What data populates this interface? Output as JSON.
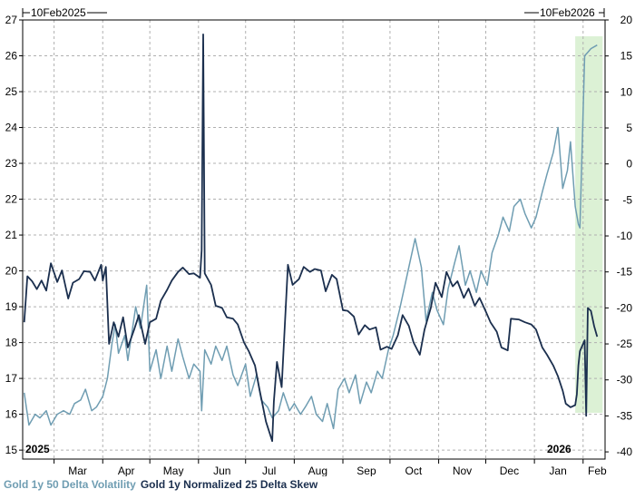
{
  "chart_data": {
    "type": "line",
    "start_label": "10Feb2025",
    "end_label": "10Feb2026",
    "year_labels": [
      "2025",
      "2026"
    ],
    "x_ticks": [
      "Mar",
      "Apr",
      "May",
      "Jun",
      "Jul",
      "Aug",
      "Sep",
      "Oct",
      "Nov",
      "Dec",
      "Jan",
      "Feb"
    ],
    "y_left": {
      "ticks": [
        15,
        16,
        17,
        18,
        19,
        20,
        21,
        22,
        23,
        24,
        25,
        26,
        27
      ],
      "range": [
        14.75,
        27
      ]
    },
    "y_right": {
      "ticks": [
        -40,
        -35,
        -30,
        -25,
        -20,
        -15,
        -10,
        -5,
        0,
        5,
        10,
        15,
        20
      ],
      "range": [
        -41,
        20
      ]
    },
    "highlight": {
      "from": "2026-01-27",
      "to": "2026-02-10",
      "color": "#d8f0d0"
    },
    "series": [
      {
        "name": "Gold 1y 50 Delta Volatility",
        "axis": "left",
        "color": "#6f9db2",
        "points": [
          [
            "2025-02-10",
            16.6
          ],
          [
            "2025-02-13",
            15.7
          ],
          [
            "2025-02-17",
            16.0
          ],
          [
            "2025-02-20",
            15.9
          ],
          [
            "2025-02-24",
            16.1
          ],
          [
            "2025-02-27",
            15.7
          ],
          [
            "2025-03-03",
            16.0
          ],
          [
            "2025-03-07",
            16.1
          ],
          [
            "2025-03-11",
            16.0
          ],
          [
            "2025-03-14",
            16.3
          ],
          [
            "2025-03-18",
            16.4
          ],
          [
            "2025-03-21",
            16.7
          ],
          [
            "2025-03-25",
            16.1
          ],
          [
            "2025-03-28",
            16.2
          ],
          [
            "2025-04-01",
            16.5
          ],
          [
            "2025-04-04",
            17.0
          ],
          [
            "2025-04-07",
            18.0
          ],
          [
            "2025-04-09",
            18.5
          ],
          [
            "2025-04-11",
            17.7
          ],
          [
            "2025-04-15",
            18.2
          ],
          [
            "2025-04-17",
            17.5
          ],
          [
            "2025-04-22",
            19.0
          ],
          [
            "2025-04-25",
            18.4
          ],
          [
            "2025-04-29",
            19.6
          ],
          [
            "2025-05-01",
            17.2
          ],
          [
            "2025-05-05",
            17.8
          ],
          [
            "2025-05-08",
            17.0
          ],
          [
            "2025-05-12",
            17.9
          ],
          [
            "2025-05-15",
            17.2
          ],
          [
            "2025-05-19",
            18.1
          ],
          [
            "2025-05-22",
            17.6
          ],
          [
            "2025-05-26",
            17.0
          ],
          [
            "2025-05-29",
            17.4
          ],
          [
            "2025-06-02",
            17.2
          ],
          [
            "2025-06-03",
            16.1
          ],
          [
            "2025-06-05",
            17.8
          ],
          [
            "2025-06-09",
            17.4
          ],
          [
            "2025-06-12",
            17.9
          ],
          [
            "2025-06-16",
            17.5
          ],
          [
            "2025-06-19",
            17.9
          ],
          [
            "2025-06-23",
            17.1
          ],
          [
            "2025-06-26",
            16.8
          ],
          [
            "2025-07-01",
            17.4
          ],
          [
            "2025-07-04",
            16.5
          ],
          [
            "2025-07-08",
            17.1
          ],
          [
            "2025-07-11",
            16.4
          ],
          [
            "2025-07-15",
            16.2
          ],
          [
            "2025-07-18",
            15.9
          ],
          [
            "2025-07-22",
            16.1
          ],
          [
            "2025-07-25",
            16.6
          ],
          [
            "2025-07-29",
            16.1
          ],
          [
            "2025-08-01",
            16.3
          ],
          [
            "2025-08-05",
            16.0
          ],
          [
            "2025-08-08",
            16.2
          ],
          [
            "2025-08-12",
            16.5
          ],
          [
            "2025-08-15",
            16.0
          ],
          [
            "2025-08-19",
            15.8
          ],
          [
            "2025-08-22",
            16.3
          ],
          [
            "2025-08-26",
            15.6
          ],
          [
            "2025-08-29",
            16.7
          ],
          [
            "2025-09-02",
            17.0
          ],
          [
            "2025-09-05",
            16.6
          ],
          [
            "2025-09-09",
            17.1
          ],
          [
            "2025-09-12",
            16.3
          ],
          [
            "2025-09-16",
            16.9
          ],
          [
            "2025-09-19",
            16.6
          ],
          [
            "2025-09-23",
            17.2
          ],
          [
            "2025-09-26",
            17.0
          ],
          [
            "2025-09-30",
            17.8
          ],
          [
            "2025-10-03",
            18.2
          ],
          [
            "2025-10-07",
            18.9
          ],
          [
            "2025-10-10",
            19.5
          ],
          [
            "2025-10-14",
            20.3
          ],
          [
            "2025-10-17",
            20.9
          ],
          [
            "2025-10-21",
            20.1
          ],
          [
            "2025-10-24",
            18.6
          ],
          [
            "2025-10-28",
            19.4
          ],
          [
            "2025-10-31",
            18.9
          ],
          [
            "2025-11-04",
            18.5
          ],
          [
            "2025-11-07",
            19.5
          ],
          [
            "2025-11-11",
            20.2
          ],
          [
            "2025-11-14",
            20.7
          ],
          [
            "2025-11-18",
            19.6
          ],
          [
            "2025-11-21",
            20.0
          ],
          [
            "2025-11-25",
            19.4
          ],
          [
            "2025-11-28",
            20.0
          ],
          [
            "2025-12-02",
            19.6
          ],
          [
            "2025-12-05",
            20.5
          ],
          [
            "2025-12-09",
            21.0
          ],
          [
            "2025-12-12",
            21.5
          ],
          [
            "2025-12-16",
            21.1
          ],
          [
            "2025-12-19",
            21.8
          ],
          [
            "2025-12-23",
            22.0
          ],
          [
            "2025-12-26",
            21.6
          ],
          [
            "2025-12-30",
            21.2
          ],
          [
            "2026-01-02",
            21.5
          ],
          [
            "2026-01-06",
            22.2
          ],
          [
            "2026-01-09",
            22.7
          ],
          [
            "2026-01-13",
            23.3
          ],
          [
            "2026-01-16",
            24.0
          ],
          [
            "2026-01-19",
            22.3
          ],
          [
            "2026-01-22",
            22.8
          ],
          [
            "2026-01-24",
            23.6
          ],
          [
            "2026-01-27",
            21.8
          ],
          [
            "2026-01-29",
            21.3
          ],
          [
            "2026-01-30",
            21.2
          ],
          [
            "2026-02-02",
            26.0
          ],
          [
            "2026-02-04",
            26.1
          ],
          [
            "2026-02-06",
            26.2
          ],
          [
            "2026-02-10",
            26.3
          ]
        ]
      },
      {
        "name": "Gold 1y Normalized 25 Delta Skew",
        "axis": "right",
        "color": "#1b2f4e",
        "points": [
          [
            "2025-02-10",
            -22.0
          ],
          [
            "2025-02-12",
            -15.6
          ],
          [
            "2025-02-15",
            -16.3
          ],
          [
            "2025-02-18",
            -17.4
          ],
          [
            "2025-02-21",
            -16.2
          ],
          [
            "2025-02-24",
            -17.6
          ],
          [
            "2025-02-27",
            -13.8
          ],
          [
            "2025-03-03",
            -16.4
          ],
          [
            "2025-03-06",
            -14.8
          ],
          [
            "2025-03-10",
            -18.7
          ],
          [
            "2025-03-13",
            -16.5
          ],
          [
            "2025-03-17",
            -16.0
          ],
          [
            "2025-03-20",
            -14.9
          ],
          [
            "2025-03-24",
            -15.0
          ],
          [
            "2025-03-27",
            -16.2
          ],
          [
            "2025-03-31",
            -14.0
          ],
          [
            "2025-04-01",
            -16.2
          ],
          [
            "2025-04-03",
            -14.3
          ],
          [
            "2025-04-05",
            -25.0
          ],
          [
            "2025-04-08",
            -22.0
          ],
          [
            "2025-04-11",
            -24.0
          ],
          [
            "2025-04-14",
            -21.3
          ],
          [
            "2025-04-17",
            -25.5
          ],
          [
            "2025-04-21",
            -23.0
          ],
          [
            "2025-04-24",
            -21.0
          ],
          [
            "2025-04-28",
            -25.0
          ],
          [
            "2025-05-01",
            -22.0
          ],
          [
            "2025-05-05",
            -21.5
          ],
          [
            "2025-05-08",
            -19.0
          ],
          [
            "2025-05-12",
            -17.5
          ],
          [
            "2025-05-15",
            -16.2
          ],
          [
            "2025-05-19",
            -15.0
          ],
          [
            "2025-05-22",
            -14.4
          ],
          [
            "2025-05-26",
            -15.3
          ],
          [
            "2025-05-29",
            -15.2
          ],
          [
            "2025-06-02",
            -15.8
          ],
          [
            "2025-06-03",
            -12.0
          ],
          [
            "2025-06-04",
            18.0
          ],
          [
            "2025-06-05",
            -15.2
          ],
          [
            "2025-06-09",
            -16.8
          ],
          [
            "2025-06-12",
            -19.7
          ],
          [
            "2025-06-16",
            -20.0
          ],
          [
            "2025-06-19",
            -21.3
          ],
          [
            "2025-06-23",
            -21.5
          ],
          [
            "2025-06-26",
            -22.3
          ],
          [
            "2025-06-30",
            -24.8
          ],
          [
            "2025-07-03",
            -26.0
          ],
          [
            "2025-07-07",
            -28.0
          ],
          [
            "2025-07-10",
            -31.5
          ],
          [
            "2025-07-14",
            -35.8
          ],
          [
            "2025-07-18",
            -38.5
          ],
          [
            "2025-07-19",
            -33.0
          ],
          [
            "2025-07-21",
            -27.5
          ],
          [
            "2025-07-24",
            -31.0
          ],
          [
            "2025-07-28",
            -14.0
          ],
          [
            "2025-07-31",
            -16.8
          ],
          [
            "2025-08-04",
            -16.0
          ],
          [
            "2025-08-07",
            -14.3
          ],
          [
            "2025-08-11",
            -15.0
          ],
          [
            "2025-08-14",
            -14.6
          ],
          [
            "2025-08-18",
            -14.8
          ],
          [
            "2025-08-21",
            -17.7
          ],
          [
            "2025-08-25",
            -15.4
          ],
          [
            "2025-08-28",
            -16.0
          ],
          [
            "2025-09-01",
            -20.3
          ],
          [
            "2025-09-04",
            -20.4
          ],
          [
            "2025-09-08",
            -21.2
          ],
          [
            "2025-09-11",
            -23.7
          ],
          [
            "2025-09-15",
            -22.4
          ],
          [
            "2025-09-18",
            -23.0
          ],
          [
            "2025-09-22",
            -22.7
          ],
          [
            "2025-09-25",
            -25.8
          ],
          [
            "2025-09-29",
            -25.4
          ],
          [
            "2025-10-02",
            -25.7
          ],
          [
            "2025-10-06",
            -23.8
          ],
          [
            "2025-10-09",
            -21.0
          ],
          [
            "2025-10-13",
            -22.5
          ],
          [
            "2025-10-16",
            -24.8
          ],
          [
            "2025-10-20",
            -26.5
          ],
          [
            "2025-10-23",
            -23.0
          ],
          [
            "2025-10-27",
            -20.0
          ],
          [
            "2025-10-30",
            -16.5
          ],
          [
            "2025-11-03",
            -18.5
          ],
          [
            "2025-11-06",
            -15.0
          ],
          [
            "2025-11-10",
            -17.0
          ],
          [
            "2025-11-13",
            -16.3
          ],
          [
            "2025-11-17",
            -18.6
          ],
          [
            "2025-11-20",
            -17.3
          ],
          [
            "2025-11-24",
            -19.7
          ],
          [
            "2025-11-27",
            -18.6
          ],
          [
            "2025-12-01",
            -20.5
          ],
          [
            "2025-12-04",
            -22.0
          ],
          [
            "2025-12-08",
            -23.3
          ],
          [
            "2025-12-11",
            -25.5
          ],
          [
            "2025-12-15",
            -25.9
          ],
          [
            "2025-12-17",
            -21.5
          ],
          [
            "2025-12-22",
            -21.6
          ],
          [
            "2025-12-26",
            -22.0
          ],
          [
            "2025-12-30",
            -22.3
          ],
          [
            "2026-01-02",
            -23.0
          ],
          [
            "2026-01-06",
            -25.5
          ],
          [
            "2026-01-09",
            -26.5
          ],
          [
            "2026-01-13",
            -28.0
          ],
          [
            "2026-01-16",
            -29.5
          ],
          [
            "2026-01-19",
            -31.5
          ],
          [
            "2026-01-21",
            -33.3
          ],
          [
            "2026-01-24",
            -33.8
          ],
          [
            "2026-01-27",
            -33.5
          ],
          [
            "2026-01-28",
            -32.0
          ],
          [
            "2026-01-29",
            -28.0
          ],
          [
            "2026-01-30",
            -26.0
          ],
          [
            "2026-02-02",
            -24.5
          ],
          [
            "2026-02-03",
            -35.0
          ],
          [
            "2026-02-04",
            -20.0
          ],
          [
            "2026-02-06",
            -20.4
          ],
          [
            "2026-02-08",
            -22.5
          ],
          [
            "2026-02-10",
            -24.0
          ]
        ]
      }
    ]
  }
}
